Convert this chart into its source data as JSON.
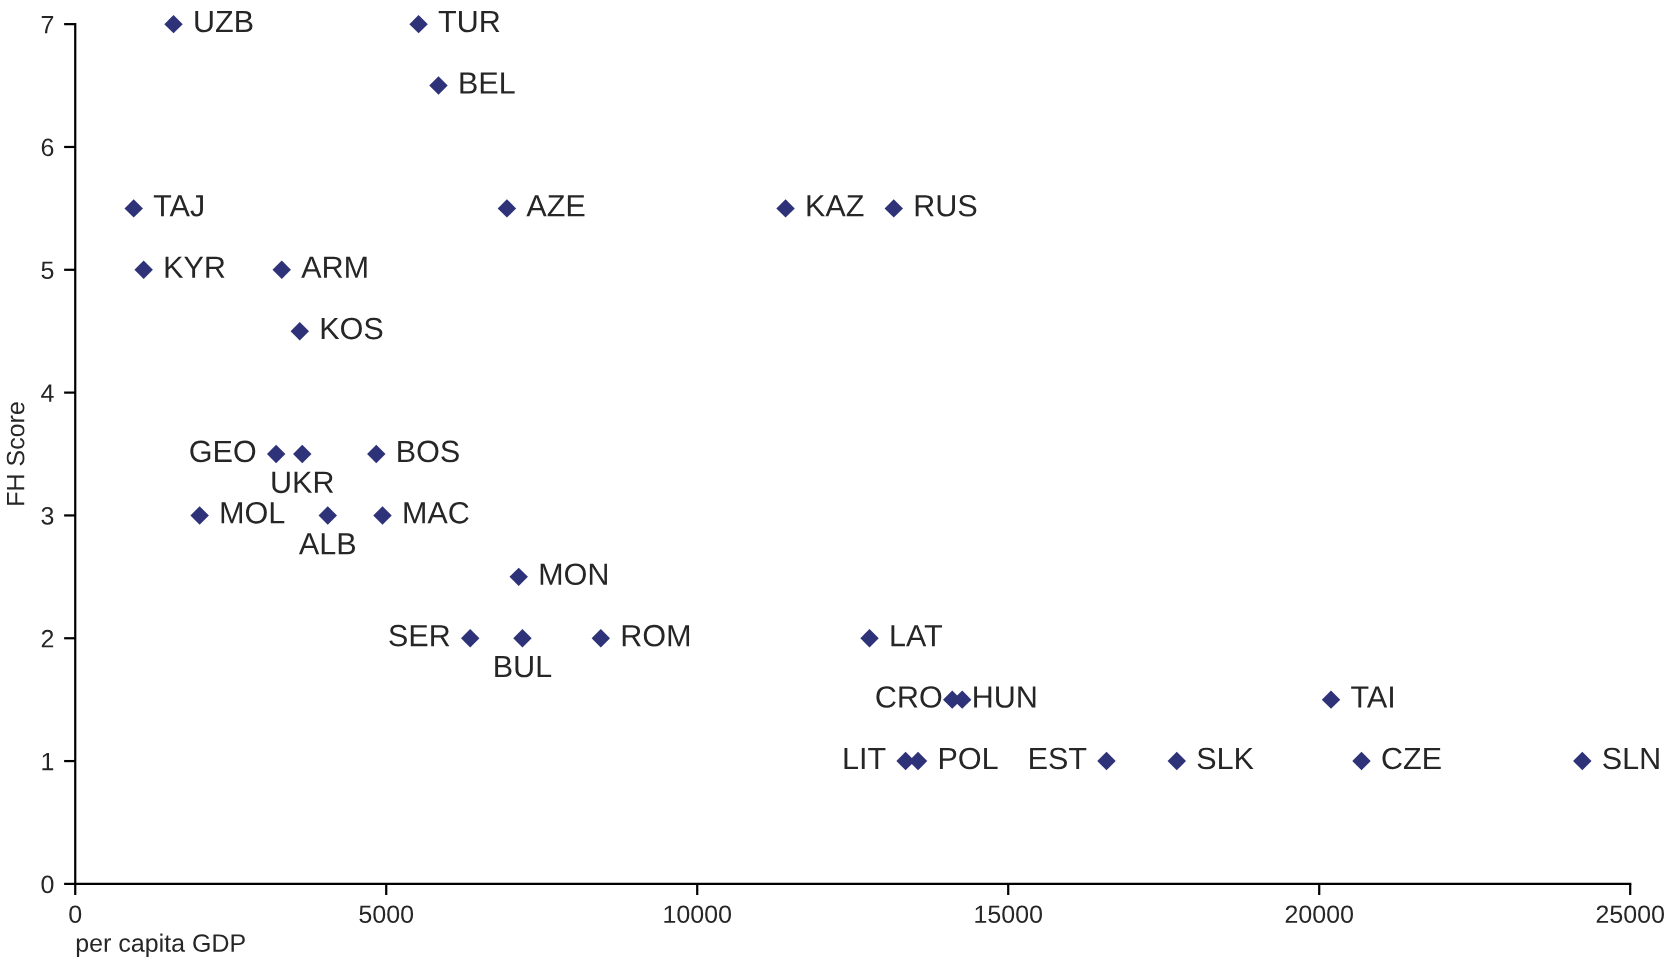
{
  "chart_data": {
    "type": "scatter",
    "xlabel": "per capita GDP",
    "ylabel": "FH Score",
    "xlim": [
      0,
      25000
    ],
    "xticks": [
      0,
      5000,
      10000,
      15000,
      20000,
      25000
    ],
    "ylim": [
      0,
      7
    ],
    "yticks": [
      0,
      1,
      2,
      3,
      4,
      5,
      6,
      7
    ],
    "grid": false,
    "marker": "diamond",
    "series": [
      {
        "color": "#2e3278",
        "x": [
          1580,
          5520,
          5840,
          940,
          6940,
          11420,
          13160,
          1100,
          3320,
          3610,
          3230,
          3650,
          4840,
          2000,
          4060,
          4940,
          7130,
          6350,
          7190,
          8450,
          12770,
          14100,
          14260,
          20190,
          13350,
          13550,
          16580,
          17710,
          20680,
          24230
        ],
        "values": [
          7,
          7,
          6.5,
          5.5,
          5.5,
          5.5,
          5.5,
          5,
          5,
          4.5,
          3.5,
          3.5,
          3.5,
          3,
          3,
          3,
          2.5,
          2,
          2,
          2,
          2,
          1.5,
          1.5,
          1.5,
          1,
          1,
          1,
          1,
          1,
          1
        ]
      }
    ],
    "annotations": [
      {
        "text": "UZB",
        "x": 1580,
        "y": 7
      },
      {
        "text": "TUR",
        "x": 5520,
        "y": 7
      },
      {
        "text": "BEL",
        "x": 5840,
        "y": 6.5
      },
      {
        "text": "TAJ",
        "x": 940,
        "y": 5.5
      },
      {
        "text": "AZE",
        "x": 6940,
        "y": 5.5
      },
      {
        "text": "KAZ",
        "x": 11420,
        "y": 5.5
      },
      {
        "text": "RUS",
        "x": 13160,
        "y": 5.5
      },
      {
        "text": "KYR",
        "x": 1100,
        "y": 5
      },
      {
        "text": "ARM",
        "x": 3320,
        "y": 5
      },
      {
        "text": "KOS",
        "x": 3610,
        "y": 4.5
      },
      {
        "text": "GEO",
        "x": 3230,
        "y": 3.5
      },
      {
        "text": "UKR",
        "x": 3650,
        "y": 3.5
      },
      {
        "text": "BOS",
        "x": 4840,
        "y": 3.5
      },
      {
        "text": "MOL",
        "x": 2000,
        "y": 3
      },
      {
        "text": "ALB",
        "x": 4060,
        "y": 3
      },
      {
        "text": "MAC",
        "x": 4940,
        "y": 3
      },
      {
        "text": "MON",
        "x": 7130,
        "y": 2.5
      },
      {
        "text": "SER",
        "x": 6350,
        "y": 2
      },
      {
        "text": "BUL",
        "x": 7190,
        "y": 2
      },
      {
        "text": "ROM",
        "x": 8450,
        "y": 2
      },
      {
        "text": "LAT",
        "x": 12770,
        "y": 2
      },
      {
        "text": "HUN",
        "x": 14100,
        "y": 1.5
      },
      {
        "text": "CRO",
        "x": 14260,
        "y": 1.5
      },
      {
        "text": "TAI",
        "x": 20190,
        "y": 1.5
      },
      {
        "text": "LIT",
        "x": 13350,
        "y": 1
      },
      {
        "text": "POL",
        "x": 13550,
        "y": 1
      },
      {
        "text": "EST",
        "x": 16580,
        "y": 1
      },
      {
        "text": "SLK",
        "x": 17710,
        "y": 1
      },
      {
        "text": "CZE",
        "x": 20680,
        "y": 1
      },
      {
        "text": "SLN",
        "x": 24230,
        "y": 1
      }
    ]
  }
}
